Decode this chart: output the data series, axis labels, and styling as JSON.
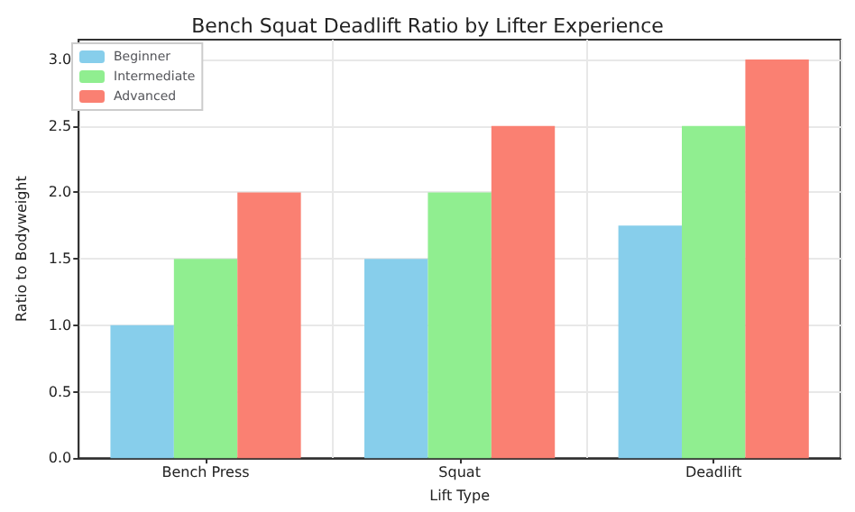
{
  "chart_data": {
    "type": "bar",
    "title": "Bench Squat Deadlift Ratio by Lifter Experience",
    "xlabel": "Lift Type",
    "ylabel": "Ratio to Bodyweight",
    "categories": [
      "Bench Press",
      "Squat",
      "Deadlift"
    ],
    "series": [
      {
        "name": "Beginner",
        "color": "#87ceeb",
        "values": [
          1.0,
          1.5,
          1.75
        ]
      },
      {
        "name": "Intermediate",
        "color": "#90ee90",
        "values": [
          1.5,
          2.0,
          2.5
        ]
      },
      {
        "name": "Advanced",
        "color": "#fa8072",
        "values": [
          2.0,
          2.5,
          3.0
        ]
      }
    ],
    "ylim": [
      0,
      3.15
    ],
    "yticks": [
      {
        "value": 0,
        "label": "0.0"
      },
      {
        "value": 0.5,
        "label": "0.5"
      },
      {
        "value": 1,
        "label": "1.0"
      },
      {
        "value": 1.5,
        "label": "1.5"
      },
      {
        "value": 2,
        "label": "2.0"
      },
      {
        "value": 2.5,
        "label": "2.5"
      },
      {
        "value": 3,
        "label": "3.0"
      }
    ],
    "grid": true,
    "legend": "top left"
  }
}
